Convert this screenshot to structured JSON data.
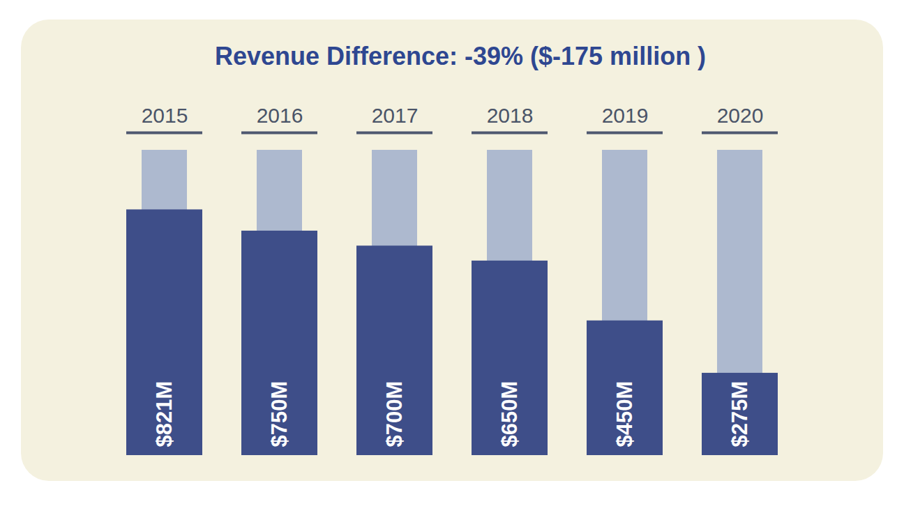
{
  "chart_data": {
    "type": "bar",
    "title": "Revenue Difference: -39% ($-175 million )",
    "categories": [
      "2015",
      "2016",
      "2017",
      "2018",
      "2019",
      "2020"
    ],
    "values": [
      821,
      750,
      700,
      650,
      450,
      275
    ],
    "value_labels": [
      "$821M",
      "$750M",
      "$700M",
      "$650M",
      "$450M",
      "$275M"
    ],
    "color": "#3e4e89",
    "ylim": [
      0,
      1020
    ],
    "yticks": [],
    "tick_labels": "x",
    "data_labels": true
  }
}
